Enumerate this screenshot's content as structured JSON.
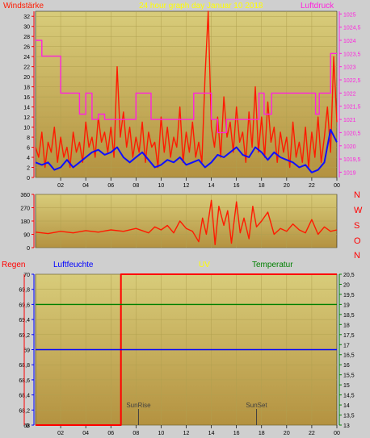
{
  "colors": {
    "bg": "#cfcfcf",
    "plot_top": "#d8cc7a",
    "plot_bottom": "#b49240",
    "wind": "#ff1a00",
    "wind_avg": "#1010ff",
    "pressure": "#ff22dd",
    "direction": "#ff1a00",
    "rain": "#ff0000",
    "humidity": "#0000ff",
    "uv": "#ffff00",
    "temperature": "#008000",
    "title": "#ffff00",
    "dir_labels": "#ff0000",
    "sunline": "#404040"
  },
  "header": {
    "wind_label": "Windstärke",
    "title": "24 hour graph day   Januar 10 2018",
    "pressure_label": "Luftdruck"
  },
  "panel2": {
    "dir_labels": [
      "N",
      "W",
      "S",
      "O",
      "N"
    ]
  },
  "panel3_header": {
    "rain_label": "Regen",
    "humidity_label": "Luftfeuchte",
    "uv_label": "UV",
    "temp_label": "Temperatur"
  },
  "x_ticks": [
    "02",
    "04",
    "06",
    "08",
    "10",
    "12",
    "14",
    "16",
    "18",
    "20",
    "22",
    "00"
  ],
  "chart_data": [
    {
      "type": "line",
      "name": "wind-pressure",
      "xlim": [
        0,
        24
      ],
      "ylim": [
        0,
        33
      ],
      "y_ticks": [
        "0",
        "2",
        "4",
        "6",
        "8",
        "10",
        "12",
        "14",
        "16",
        "18",
        "20",
        "22",
        "24",
        "26",
        "28",
        "30",
        "32"
      ],
      "y2lim": [
        1018.8,
        1025.1
      ],
      "y2_ticks": [
        "1019",
        "1019,5",
        "1020",
        "1020,5",
        "1021",
        "1021,5",
        "1022",
        "1022,5",
        "1023",
        "1023,5",
        "1024",
        "1024,5",
        "1025"
      ],
      "series": [
        {
          "name": "Windstärke",
          "key": "wind",
          "x": [
            0,
            0.25,
            0.5,
            0.75,
            1,
            1.25,
            1.5,
            1.75,
            2,
            2.25,
            2.5,
            2.75,
            3,
            3.25,
            3.5,
            3.75,
            4,
            4.25,
            4.5,
            4.75,
            5,
            5.25,
            5.5,
            5.75,
            6,
            6.25,
            6.5,
            6.75,
            7,
            7.25,
            7.5,
            7.75,
            8,
            8.25,
            8.5,
            8.75,
            9,
            9.25,
            9.5,
            9.75,
            10,
            10.25,
            10.5,
            10.75,
            11,
            11.25,
            11.5,
            11.75,
            12,
            12.25,
            12.5,
            12.75,
            13,
            13.25,
            13.5,
            13.75,
            14,
            14.25,
            14.5,
            14.75,
            15,
            15.25,
            15.5,
            15.75,
            16,
            16.25,
            16.5,
            16.75,
            17,
            17.25,
            17.5,
            17.75,
            18,
            18.25,
            18.5,
            18.75,
            19,
            19.25,
            19.5,
            19.75,
            20,
            20.25,
            20.5,
            20.75,
            21,
            21.25,
            21.5,
            21.75,
            22,
            22.25,
            22.5,
            22.75,
            23,
            23.25,
            23.5,
            23.75,
            24
          ],
          "values": [
            6,
            4,
            9,
            2,
            7,
            5,
            10,
            3,
            8,
            4,
            6,
            2,
            9,
            5,
            7,
            3,
            11,
            6,
            8,
            4,
            12,
            7,
            9,
            5,
            10,
            4,
            22,
            8,
            13,
            6,
            10,
            4,
            8,
            5,
            11,
            3,
            9,
            6,
            7,
            2,
            12,
            5,
            10,
            4,
            8,
            6,
            14,
            3,
            9,
            5,
            11,
            4,
            7,
            3,
            20,
            33,
            10,
            6,
            12,
            4,
            16,
            8,
            11,
            5,
            14,
            7,
            9,
            3,
            13,
            6,
            18,
            5,
            12,
            4,
            15,
            7,
            10,
            3,
            9,
            5,
            8,
            2,
            11,
            4,
            7,
            3,
            10,
            2,
            9,
            4,
            12,
            3,
            8,
            14,
            5,
            24,
            11
          ]
        },
        {
          "name": "Wind avg",
          "key": "wind_avg",
          "x": [
            0,
            0.5,
            1,
            1.5,
            2,
            2.5,
            3,
            3.5,
            4,
            4.5,
            5,
            5.5,
            6,
            6.5,
            7,
            7.5,
            8,
            8.5,
            9,
            9.5,
            10,
            10.5,
            11,
            11.5,
            12,
            12.5,
            13,
            13.5,
            14,
            14.5,
            15,
            15.5,
            16,
            16.5,
            17,
            17.5,
            18,
            18.5,
            19,
            19.5,
            20,
            20.5,
            21,
            21.5,
            22,
            22.5,
            23,
            23.5,
            24
          ],
          "values": [
            3,
            2.5,
            3,
            1.5,
            2,
            3.5,
            2,
            3,
            4,
            5,
            5.5,
            4.5,
            5,
            6,
            4,
            3,
            4,
            5,
            3.5,
            2,
            2.5,
            3.5,
            3,
            4,
            2.5,
            3,
            3.5,
            2,
            3,
            4.5,
            4,
            5,
            6,
            4.5,
            4,
            6,
            5,
            3.5,
            5,
            4,
            3.5,
            3,
            2,
            2.5,
            1,
            1.5,
            3,
            9.5,
            7
          ]
        },
        {
          "name": "Luftdruck",
          "key": "pressure",
          "axis": "right",
          "x": [
            0,
            0.5,
            0.5,
            2,
            2,
            3.5,
            3.5,
            4,
            4,
            4.5,
            4.5,
            5,
            5,
            5.5,
            5.5,
            8,
            8,
            9.2,
            9.2,
            12.6,
            12.6,
            14,
            14,
            14.5,
            14.5,
            15.2,
            15.2,
            17.8,
            17.8,
            18.2,
            18.2,
            18.8,
            18.8,
            22.3,
            22.3,
            22.6,
            22.6,
            23.5,
            23.5,
            24
          ],
          "values": [
            1024,
            1024,
            1023.4,
            1023.4,
            1022,
            1022,
            1021.2,
            1021.2,
            1022,
            1022,
            1021,
            1021,
            1021.2,
            1021.2,
            1021,
            1021,
            1022,
            1022,
            1021,
            1021,
            1022,
            1022,
            1021,
            1021,
            1020.5,
            1020.5,
            1021,
            1021,
            1022,
            1022,
            1021.2,
            1021.2,
            1022,
            1022,
            1021.2,
            1021.2,
            1022,
            1022,
            1023.5,
            1023.5
          ]
        }
      ]
    },
    {
      "type": "line",
      "name": "wind-direction",
      "xlim": [
        0,
        24
      ],
      "ylim": [
        0,
        360
      ],
      "y_ticks": [
        "0",
        "90",
        "180",
        "270",
        "360"
      ],
      "series": [
        {
          "name": "Windrichtung",
          "key": "direction",
          "x": [
            0,
            1,
            2,
            3,
            4,
            5,
            6,
            7,
            8,
            9,
            9.5,
            10,
            10.5,
            11,
            11.5,
            12,
            12.5,
            13,
            13.3,
            13.6,
            14,
            14.3,
            14.6,
            15,
            15.3,
            15.6,
            16,
            16.3,
            16.6,
            17,
            17.3,
            17.6,
            18,
            18.5,
            19,
            19.5,
            20,
            20.5,
            21,
            21.5,
            22,
            22.5,
            23,
            23.5,
            24
          ],
          "values": [
            105,
            95,
            110,
            100,
            115,
            105,
            120,
            110,
            130,
            100,
            140,
            120,
            150,
            100,
            180,
            130,
            110,
            40,
            200,
            90,
            320,
            20,
            280,
            150,
            250,
            30,
            310,
            100,
            200,
            60,
            280,
            140,
            180,
            240,
            90,
            130,
            110,
            160,
            120,
            100,
            190,
            90,
            140,
            110,
            120
          ]
        }
      ]
    },
    {
      "type": "line",
      "name": "rain-humidity-uv-temperature",
      "xlim": [
        0,
        24
      ],
      "ylim": [
        68,
        70
      ],
      "y_ticks": [
        "68",
        "68,2",
        "68,4",
        "68,6",
        "68,8",
        "69",
        "69,2",
        "69,4",
        "69,6",
        "69,8",
        "70"
      ],
      "y2lim": [
        13,
        20.5
      ],
      "y2_ticks": [
        "13",
        "13,5",
        "14",
        "14,5",
        "15",
        "15,5",
        "16",
        "16,5",
        "17",
        "17,5",
        "18",
        "18,5",
        "19",
        "19,5",
        "20",
        "20,5"
      ],
      "rain_ticks": [
        "0"
      ],
      "series": [
        {
          "name": "Regen",
          "key": "rain",
          "x": [
            0,
            6.8,
            6.8,
            24
          ],
          "values": [
            68,
            68,
            70,
            70
          ]
        },
        {
          "name": "Luftfeuchte",
          "key": "humidity",
          "x": [
            0,
            24
          ],
          "values": [
            69,
            69
          ]
        },
        {
          "name": "Temperatur",
          "key": "temperature",
          "axis": "right",
          "x": [
            0,
            24
          ],
          "values": [
            19,
            19
          ]
        }
      ],
      "annotations": [
        {
          "text": "SunRise",
          "x": 8.2
        },
        {
          "text": "SunSet",
          "x": 17.6
        }
      ]
    }
  ]
}
